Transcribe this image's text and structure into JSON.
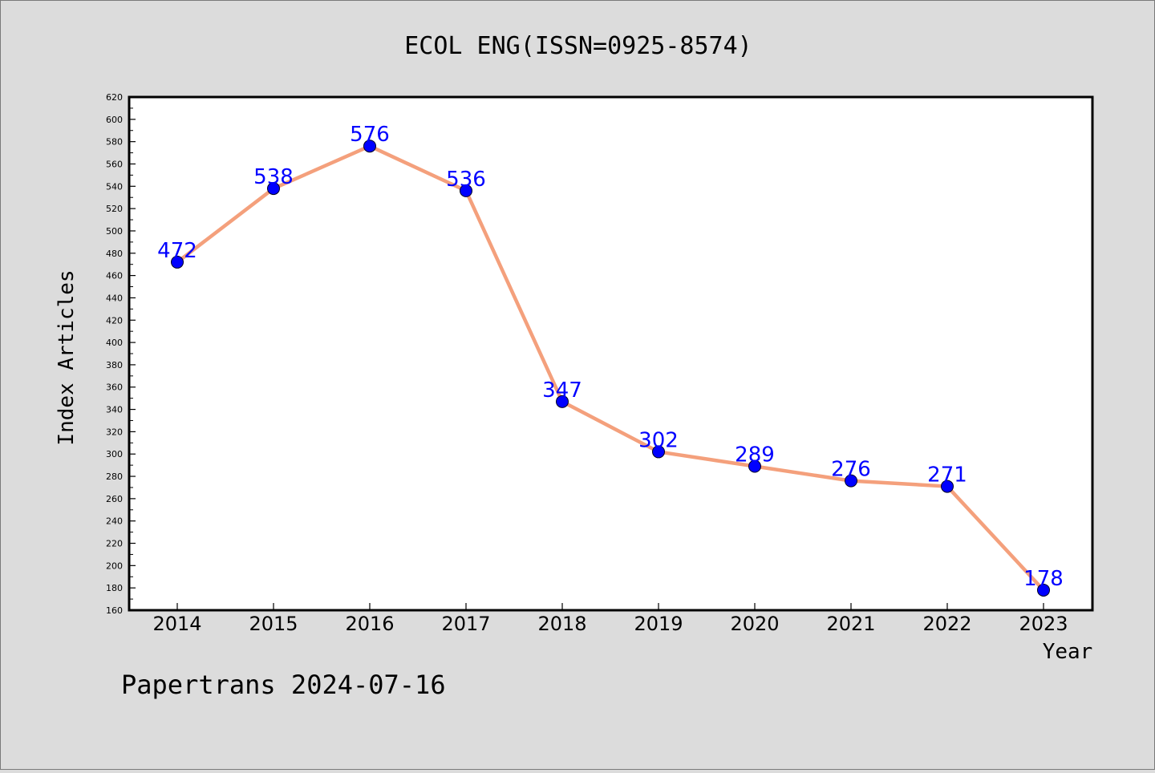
{
  "chart_data": {
    "type": "line",
    "title": "ECOL ENG(ISSN=0925-8574)",
    "xlabel": "Year",
    "ylabel": "Index Articles",
    "categories": [
      "2014",
      "2015",
      "2016",
      "2017",
      "2018",
      "2019",
      "2020",
      "2021",
      "2022",
      "2023"
    ],
    "series": [
      {
        "values": [
          472,
          538,
          576,
          536,
          347,
          302,
          289,
          276,
          271,
          178
        ]
      }
    ],
    "ylim": [
      160,
      620
    ],
    "y_ticks": [
      160,
      180,
      200,
      220,
      240,
      260,
      280,
      300,
      320,
      340,
      360,
      380,
      400,
      420,
      440,
      460,
      480,
      500,
      520,
      540,
      560,
      580,
      600,
      620
    ],
    "grid": false,
    "data_labels": true,
    "colors": {
      "line": "#f4a07c",
      "marker": "#0000ff",
      "data_label": "#0000ff",
      "background": "#dcdcdc",
      "plot_background": "#ffffff"
    }
  },
  "footer": {
    "text": "Papertrans 2024-07-16"
  }
}
